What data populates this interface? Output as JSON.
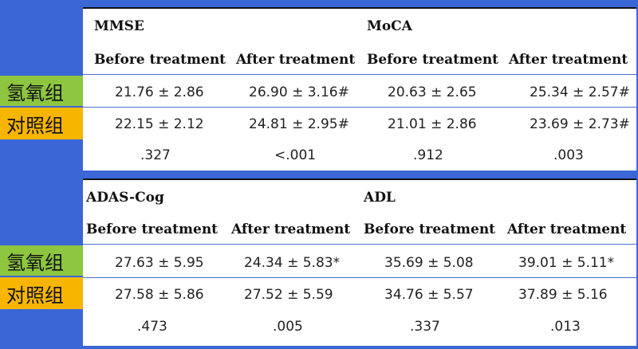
{
  "tables": [
    {
      "groups": [
        "MMSE",
        "MoCA"
      ],
      "subheaders": [
        "Before treatment",
        "After treatment",
        "Before treatment",
        "After treatment"
      ],
      "rows": [
        [
          "21.76 ± 2.86",
          "26.90 ± 3.16#",
          "20.63 ± 2.65",
          "25.34 ± 2.57#"
        ],
        [
          "22.15 ± 2.12",
          "24.81 ± 2.95#",
          "21.01 ± 2.86",
          "23.69 ± 2.73#"
        ],
        [
          ".327",
          "<.001",
          ".912",
          ".003"
        ]
      ]
    },
    {
      "groups": [
        "ADAS-Cog",
        "ADL"
      ],
      "subheaders": [
        "Before treatment",
        "After treatment",
        "Before treatment",
        "After treatment"
      ],
      "rows": [
        [
          "27.63 ± 5.95",
          "24.34 ± 5.83*",
          "35.69 ± 5.08",
          "39.01 ± 5.11*"
        ],
        [
          "27.58 ± 5.86",
          "27.52 ± 5.59",
          "34.76 ± 5.57",
          "37.89 ± 5.16"
        ],
        [
          ".473",
          ".005",
          ".337",
          ".013"
        ]
      ]
    }
  ],
  "side_labels": {
    "hydrogen_group": "氢氧组",
    "control_group": "对照组"
  },
  "colors": {
    "background": "#3b66d6",
    "hydrogen_label_bg": "#8dc63f",
    "control_label_bg": "#f7b500",
    "row_rule": "#4a6fd0"
  }
}
